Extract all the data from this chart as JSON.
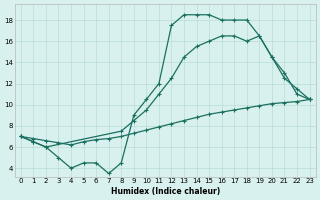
{
  "xlabel": "Humidex (Indice chaleur)",
  "bg_color": "#d8f0ee",
  "grid_color": "#b8dcd8",
  "line_color": "#1a7060",
  "xlim": [
    -0.5,
    23.5
  ],
  "ylim": [
    3.2,
    19.5
  ],
  "xticks": [
    0,
    1,
    2,
    3,
    4,
    5,
    6,
    7,
    8,
    9,
    10,
    11,
    12,
    13,
    14,
    15,
    16,
    17,
    18,
    19,
    20,
    21,
    22,
    23
  ],
  "yticks": [
    4,
    6,
    8,
    10,
    12,
    14,
    16,
    18
  ],
  "curve1_x": [
    0,
    1,
    2,
    3,
    4,
    5,
    6,
    7,
    8,
    9,
    10,
    11,
    12,
    13,
    14,
    15,
    16,
    17,
    18,
    19,
    20,
    21,
    22,
    23
  ],
  "curve1_y": [
    7.0,
    6.5,
    6.0,
    5.0,
    4.0,
    4.5,
    4.5,
    3.5,
    4.5,
    9.0,
    10.5,
    12.0,
    17.5,
    18.5,
    18.5,
    18.5,
    18.0,
    18.0,
    18.0,
    16.5,
    14.5,
    13.0,
    11.0,
    10.5
  ],
  "curve2_x": [
    0,
    1,
    2,
    8,
    9,
    10,
    11,
    12,
    13,
    14,
    15,
    16,
    17,
    18,
    19,
    20,
    21,
    22,
    23
  ],
  "curve2_y": [
    7.0,
    6.5,
    6.0,
    7.5,
    8.5,
    9.5,
    11.0,
    12.5,
    14.5,
    15.5,
    16.0,
    16.5,
    16.5,
    16.0,
    16.5,
    14.5,
    12.5,
    11.5,
    10.5
  ],
  "curve3_x": [
    0,
    1,
    2,
    3,
    4,
    5,
    6,
    7,
    8,
    9,
    10,
    11,
    12,
    13,
    14,
    15,
    16,
    17,
    18,
    19,
    20,
    21,
    22,
    23
  ],
  "curve3_y": [
    7.0,
    6.8,
    6.6,
    6.4,
    6.2,
    6.5,
    6.7,
    6.8,
    7.0,
    7.3,
    7.6,
    7.9,
    8.2,
    8.5,
    8.8,
    9.1,
    9.3,
    9.5,
    9.7,
    9.9,
    10.1,
    10.2,
    10.3,
    10.5
  ]
}
